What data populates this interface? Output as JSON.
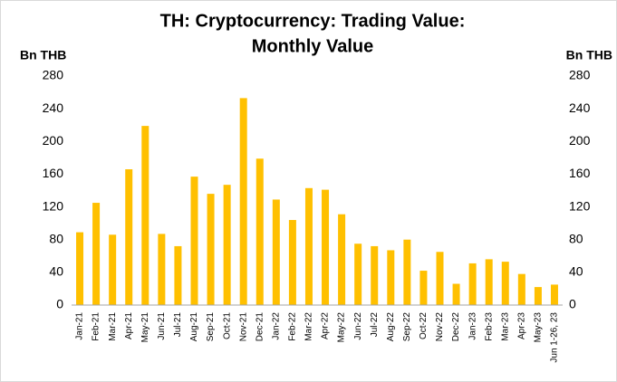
{
  "chart_data": {
    "type": "bar",
    "title": [
      "TH: Cryptocurrency: Trading Value:",
      "Monthly Value"
    ],
    "y_label": "Bn THB",
    "y2_label": "Bn THB",
    "categories": [
      "Jan-21",
      "Feb-21",
      "Mar-21",
      "Apr-21",
      "May-21",
      "Jun-21",
      "Jul-21",
      "Aug-21",
      "Sep-21",
      "Oct-21",
      "Nov-21",
      "Dec-21",
      "Jan-22",
      "Feb-22",
      "Mar-22",
      "Apr-22",
      "May-22",
      "Jun-22",
      "Jul-22",
      "Aug-22",
      "Sep-22",
      "Oct-22",
      "Nov-22",
      "Dec-22",
      "Jan-23",
      "Feb-23",
      "Mar-23",
      "Apr-23",
      "May-23",
      "Jun 1-26, 23"
    ],
    "values": [
      89,
      125,
      86,
      166,
      219,
      87,
      72,
      157,
      136,
      147,
      253,
      179,
      129,
      104,
      143,
      141,
      111,
      75,
      72,
      67,
      80,
      42,
      65,
      26,
      51,
      56,
      53,
      38,
      22,
      25
    ],
    "color": "#ffc000",
    "ylim": [
      0,
      280
    ],
    "yticks": [
      0,
      40,
      80,
      120,
      160,
      200,
      240,
      280
    ],
    "y2lim": [
      0,
      280
    ],
    "y2ticks": [
      0,
      40,
      80,
      120,
      160,
      200,
      240,
      280
    ],
    "grid": false
  }
}
